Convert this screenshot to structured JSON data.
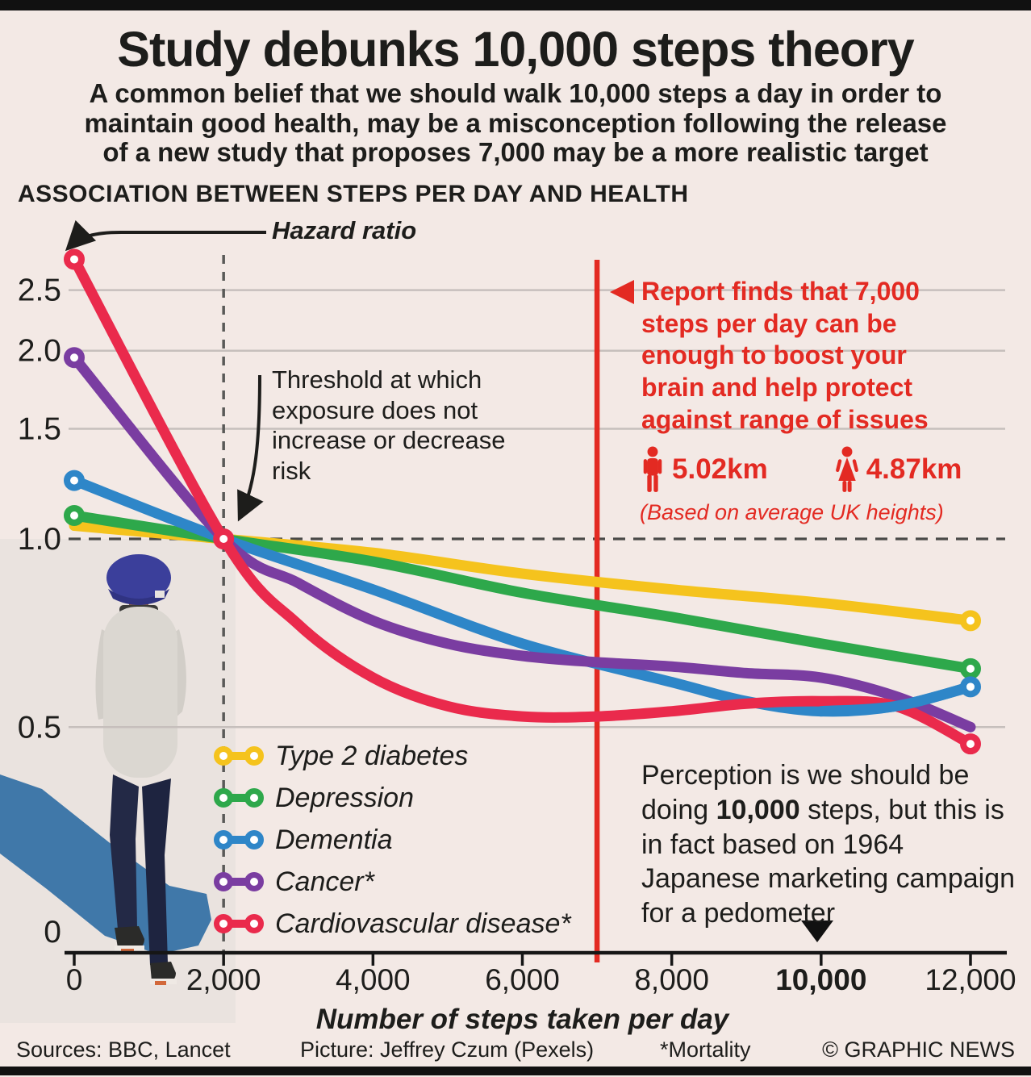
{
  "page": {
    "title": "Study debunks 10,000 steps theory",
    "subtitle": "A common belief that we should walk 10,000 steps a day in order to\nmaintain good health, may be a misconception following the release\nof a new study that proposes 7,000 may be a more realistic target",
    "section_header": "ASSOCIATION BETWEEN STEPS PER DAY AND HEALTH",
    "footer": {
      "sources": "Sources: BBC, Lancet",
      "picture": "Picture: Jeffrey Czum (Pexels)",
      "mortality_note": "*Mortality",
      "credit": "© GRAPHIC NEWS"
    }
  },
  "annotations": {
    "hazard_ratio_label": "Hazard ratio",
    "threshold_note": "Threshold at which\nexposure does not\nincrease or decrease\nrisk",
    "report_note": "Report finds that 7,000 steps per day can be enough to boost your brain and help protect against range of issues",
    "male_distance": "5.02km",
    "female_distance": "4.87km",
    "heights_note": "(Based on average UK heights)",
    "perception_pre": "Perception is we should be doing ",
    "perception_bold": "10,000",
    "perception_post": " steps, but this is in fact based on 1964 Japanese marketing campaign for a pedometer"
  },
  "colors": {
    "background": "#f3e9e5",
    "accent_red": "#e32a22",
    "grid": "#c6bfbc",
    "dashed_ref": "#4a4a48",
    "axis": "#161616",
    "shadow_blue": "#2e6ba3"
  },
  "chart_data": {
    "type": "line",
    "title": "ASSOCIATION BETWEEN STEPS PER DAY AND HEALTH",
    "xlabel": "Number of steps taken per day",
    "ylabel": "Hazard ratio",
    "y_scale": "log",
    "grid": true,
    "legend_position": "bottom-left",
    "x_ticks": [
      0,
      2000,
      4000,
      6000,
      8000,
      10000,
      12000
    ],
    "x_tick_labels": [
      "0",
      "2,000",
      "4,000",
      "6,000",
      "8,000",
      "10,000",
      "12,000"
    ],
    "bold_x_tick_label": "10,000",
    "y_ticks": [
      2.5,
      2.0,
      1.5,
      1.0,
      0.5,
      0
    ],
    "y_tick_labels": [
      "2.5",
      "2.0",
      "1.5",
      "1.0",
      "0.5",
      "0"
    ],
    "ylim_plotted": [
      0.45,
      2.9
    ],
    "reference_lines": {
      "no_effect_hazard_ratio": 1.0,
      "threshold_steps": 2000,
      "report_recommended_steps": 7000,
      "perception_steps": 10000
    },
    "series": [
      {
        "name": "Type 2 diabetes",
        "color": "#f5c31d",
        "start_marker": false,
        "end_marker": true,
        "x": [
          0,
          2000,
          4000,
          6000,
          8000,
          10000,
          12000
        ],
        "y": [
          1.05,
          1.0,
          0.95,
          0.88,
          0.83,
          0.79,
          0.74
        ]
      },
      {
        "name": "Depression",
        "color": "#2ea84b",
        "start_marker": true,
        "end_marker": true,
        "x": [
          0,
          2000,
          4000,
          6000,
          8000,
          10000,
          12000
        ],
        "y": [
          1.09,
          1.0,
          0.92,
          0.82,
          0.75,
          0.68,
          0.62
        ]
      },
      {
        "name": "Dementia",
        "color": "#2e86c8",
        "start_marker": true,
        "end_marker": true,
        "x": [
          0,
          2000,
          4000,
          6000,
          8000,
          9000,
          10000,
          11000,
          12000
        ],
        "y": [
          1.24,
          1.0,
          0.83,
          0.68,
          0.59,
          0.55,
          0.53,
          0.54,
          0.58
        ]
      },
      {
        "name": "Cancer*",
        "color": "#7a3da1",
        "start_marker": true,
        "end_marker": false,
        "x": [
          0,
          2000,
          3000,
          4000,
          5000,
          6000,
          7000,
          8000,
          9000,
          10000,
          11000,
          12000
        ],
        "y": [
          1.95,
          1.0,
          0.85,
          0.74,
          0.68,
          0.65,
          0.635,
          0.625,
          0.61,
          0.6,
          0.56,
          0.5
        ]
      },
      {
        "name": "Cardiovascular disease*",
        "color": "#ea2a4c",
        "start_marker": true,
        "end_marker": true,
        "x": [
          0,
          2000,
          3000,
          4000,
          5000,
          6000,
          7000,
          8000,
          9000,
          10000,
          11000,
          12000
        ],
        "y": [
          2.8,
          1.0,
          0.73,
          0.6,
          0.54,
          0.52,
          0.52,
          0.53,
          0.545,
          0.55,
          0.54,
          0.47
        ]
      }
    ]
  }
}
